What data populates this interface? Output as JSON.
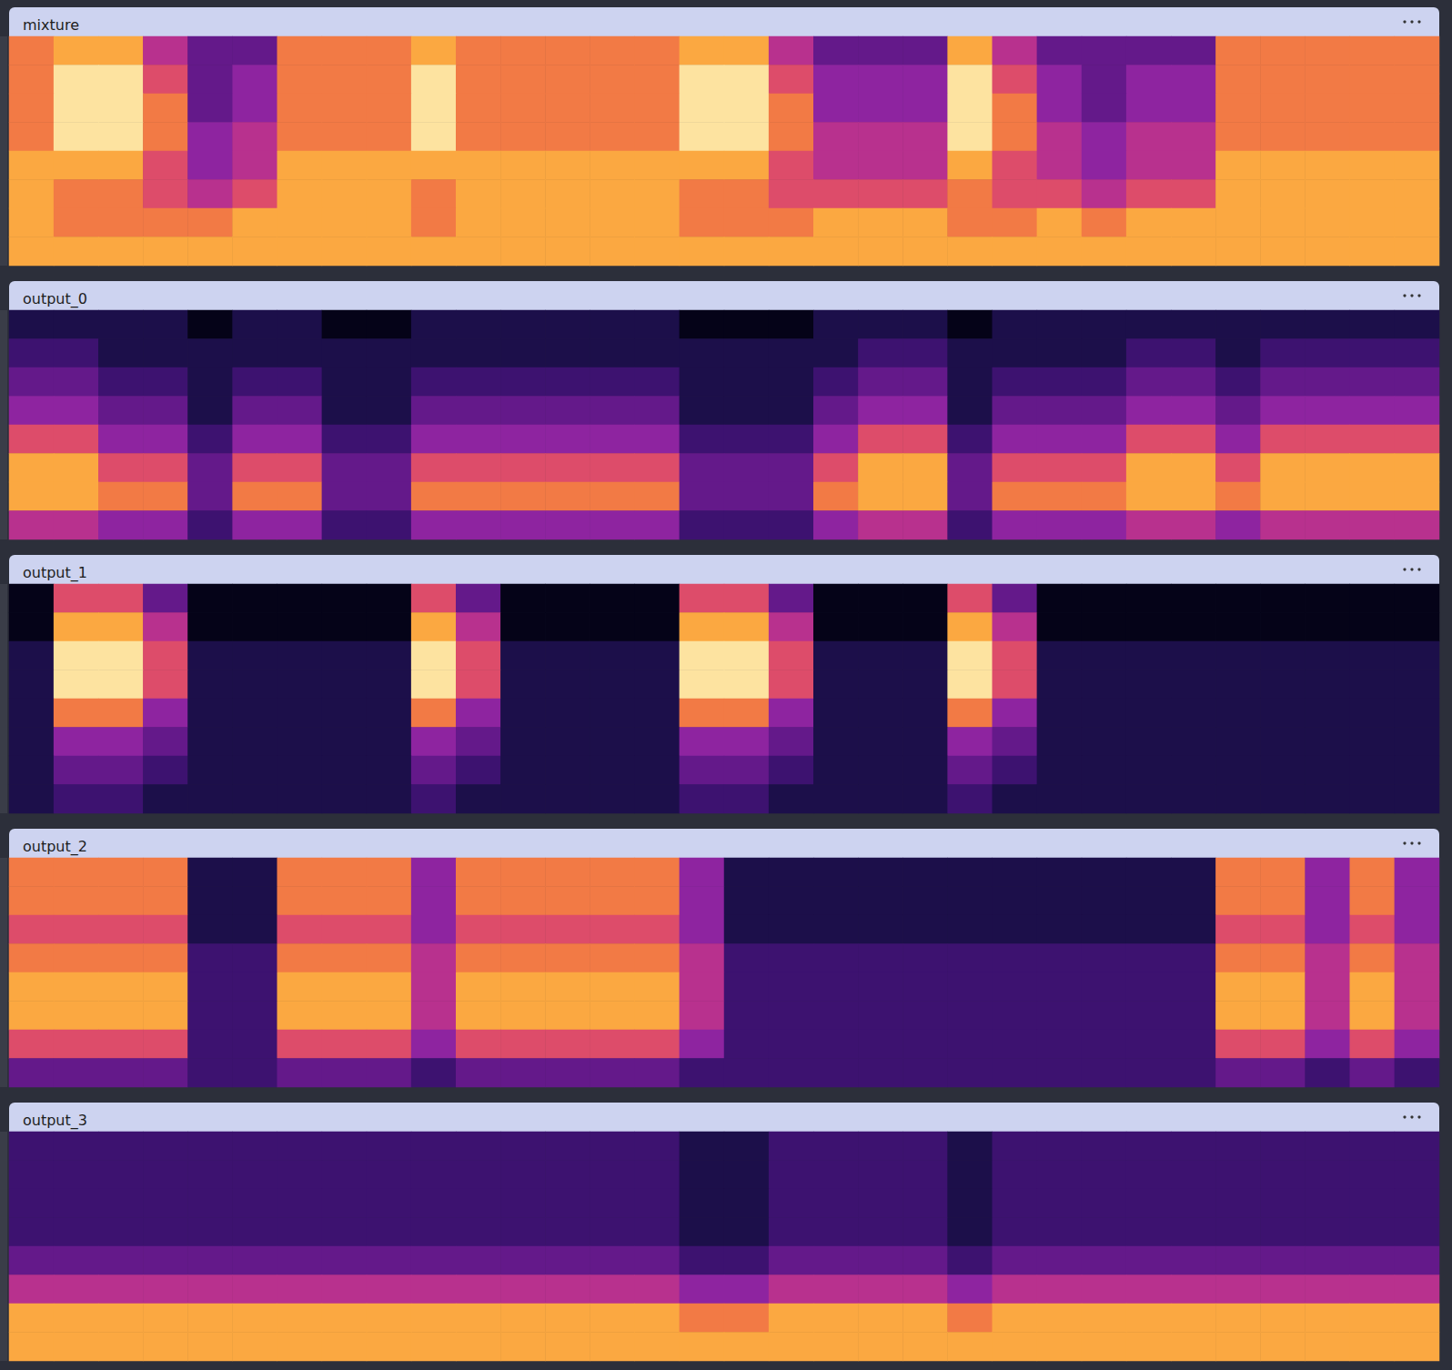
{
  "chart_data": [
    {
      "type": "heatmap",
      "title": "mixture",
      "tick_labels": false,
      "color_range": [
        0,
        9
      ],
      "cells": [
        [
          7,
          8,
          8,
          5,
          3,
          3,
          7,
          7,
          7,
          8,
          7,
          7,
          7,
          7,
          7,
          8,
          8,
          5,
          3,
          3,
          3,
          8,
          5,
          3,
          3,
          3,
          3,
          7,
          7,
          7,
          7,
          7
        ],
        [
          7,
          9,
          9,
          6,
          3,
          4,
          7,
          7,
          7,
          9,
          7,
          7,
          7,
          7,
          7,
          9,
          9,
          6,
          4,
          4,
          4,
          9,
          6,
          4,
          3,
          4,
          4,
          7,
          7,
          7,
          7,
          7
        ],
        [
          7,
          9,
          9,
          7,
          3,
          4,
          7,
          7,
          7,
          9,
          7,
          7,
          7,
          7,
          7,
          9,
          9,
          7,
          4,
          4,
          4,
          9,
          7,
          4,
          3,
          4,
          4,
          7,
          7,
          7,
          7,
          7
        ],
        [
          7,
          9,
          9,
          7,
          4,
          5,
          7,
          7,
          7,
          9,
          7,
          7,
          7,
          7,
          7,
          9,
          9,
          7,
          5,
          5,
          5,
          9,
          7,
          5,
          4,
          5,
          5,
          7,
          7,
          7,
          7,
          7
        ],
        [
          8,
          8,
          8,
          6,
          4,
          5,
          8,
          8,
          8,
          8,
          8,
          8,
          8,
          8,
          8,
          8,
          8,
          6,
          5,
          5,
          5,
          8,
          6,
          5,
          4,
          5,
          5,
          8,
          8,
          8,
          8,
          8
        ],
        [
          8,
          7,
          7,
          6,
          5,
          6,
          8,
          8,
          8,
          7,
          8,
          8,
          8,
          8,
          8,
          7,
          7,
          6,
          6,
          6,
          6,
          7,
          6,
          6,
          5,
          6,
          6,
          8,
          8,
          8,
          8,
          8
        ],
        [
          8,
          7,
          7,
          7,
          7,
          8,
          8,
          8,
          8,
          7,
          8,
          8,
          8,
          8,
          8,
          7,
          7,
          7,
          8,
          8,
          8,
          7,
          7,
          8,
          7,
          8,
          8,
          8,
          8,
          8,
          8,
          8
        ],
        [
          8,
          8,
          8,
          8,
          8,
          8,
          8,
          8,
          8,
          8,
          8,
          8,
          8,
          8,
          8,
          8,
          8,
          8,
          8,
          8,
          8,
          8,
          8,
          8,
          8,
          8,
          8,
          8,
          8,
          8,
          8,
          8
        ]
      ]
    },
    {
      "type": "heatmap",
      "title": "output_0",
      "tick_labels": false,
      "color_range": [
        0,
        9
      ],
      "cells": [
        [
          1,
          1,
          1,
          1,
          0,
          1,
          1,
          0,
          0,
          1,
          1,
          1,
          1,
          1,
          1,
          0,
          0,
          0,
          1,
          1,
          1,
          0,
          1,
          1,
          1,
          1,
          1,
          1,
          1,
          1,
          1,
          1
        ],
        [
          2,
          2,
          1,
          1,
          1,
          1,
          1,
          1,
          1,
          1,
          1,
          1,
          1,
          1,
          1,
          1,
          1,
          1,
          1,
          2,
          2,
          1,
          1,
          1,
          1,
          2,
          2,
          1,
          2,
          2,
          2,
          2
        ],
        [
          3,
          3,
          2,
          2,
          1,
          2,
          2,
          1,
          1,
          2,
          2,
          2,
          2,
          2,
          2,
          1,
          1,
          1,
          2,
          3,
          3,
          1,
          2,
          2,
          2,
          3,
          3,
          2,
          3,
          3,
          3,
          3
        ],
        [
          4,
          4,
          3,
          3,
          1,
          3,
          3,
          1,
          1,
          3,
          3,
          3,
          3,
          3,
          3,
          1,
          1,
          1,
          3,
          4,
          4,
          1,
          3,
          3,
          3,
          4,
          4,
          3,
          4,
          4,
          4,
          4
        ],
        [
          6,
          6,
          4,
          4,
          2,
          4,
          4,
          2,
          2,
          4,
          4,
          4,
          4,
          4,
          4,
          2,
          2,
          2,
          4,
          6,
          6,
          2,
          4,
          4,
          4,
          6,
          6,
          4,
          6,
          6,
          6,
          6
        ],
        [
          8,
          8,
          6,
          6,
          3,
          6,
          6,
          3,
          3,
          6,
          6,
          6,
          6,
          6,
          6,
          3,
          3,
          3,
          6,
          8,
          8,
          3,
          6,
          6,
          6,
          8,
          8,
          6,
          8,
          8,
          8,
          8
        ],
        [
          8,
          8,
          7,
          7,
          3,
          7,
          7,
          3,
          3,
          7,
          7,
          7,
          7,
          7,
          7,
          3,
          3,
          3,
          7,
          8,
          8,
          3,
          7,
          7,
          7,
          8,
          8,
          7,
          8,
          8,
          8,
          8
        ],
        [
          5,
          5,
          4,
          4,
          2,
          4,
          4,
          2,
          2,
          4,
          4,
          4,
          4,
          4,
          4,
          2,
          2,
          2,
          4,
          5,
          5,
          2,
          4,
          4,
          4,
          5,
          5,
          4,
          5,
          5,
          5,
          5
        ]
      ]
    },
    {
      "type": "heatmap",
      "title": "output_1",
      "tick_labels": false,
      "color_range": [
        0,
        9
      ],
      "cells": [
        [
          0,
          6,
          6,
          3,
          0,
          0,
          0,
          0,
          0,
          6,
          3,
          0,
          0,
          0,
          0,
          6,
          6,
          3,
          0,
          0,
          0,
          6,
          3,
          0,
          0,
          0,
          0,
          0,
          0,
          0,
          0,
          0
        ],
        [
          0,
          8,
          8,
          5,
          0,
          0,
          0,
          0,
          0,
          8,
          5,
          0,
          0,
          0,
          0,
          8,
          8,
          5,
          0,
          0,
          0,
          8,
          5,
          0,
          0,
          0,
          0,
          0,
          0,
          0,
          0,
          0
        ],
        [
          1,
          9,
          9,
          6,
          1,
          1,
          1,
          1,
          1,
          9,
          6,
          1,
          1,
          1,
          1,
          9,
          9,
          6,
          1,
          1,
          1,
          9,
          6,
          1,
          1,
          1,
          1,
          1,
          1,
          1,
          1,
          1
        ],
        [
          1,
          9,
          9,
          6,
          1,
          1,
          1,
          1,
          1,
          9,
          6,
          1,
          1,
          1,
          1,
          9,
          9,
          6,
          1,
          1,
          1,
          9,
          6,
          1,
          1,
          1,
          1,
          1,
          1,
          1,
          1,
          1
        ],
        [
          1,
          7,
          7,
          4,
          1,
          1,
          1,
          1,
          1,
          7,
          4,
          1,
          1,
          1,
          1,
          7,
          7,
          4,
          1,
          1,
          1,
          7,
          4,
          1,
          1,
          1,
          1,
          1,
          1,
          1,
          1,
          1
        ],
        [
          1,
          4,
          4,
          3,
          1,
          1,
          1,
          1,
          1,
          4,
          3,
          1,
          1,
          1,
          1,
          4,
          4,
          3,
          1,
          1,
          1,
          4,
          3,
          1,
          1,
          1,
          1,
          1,
          1,
          1,
          1,
          1
        ],
        [
          1,
          3,
          3,
          2,
          1,
          1,
          1,
          1,
          1,
          3,
          2,
          1,
          1,
          1,
          1,
          3,
          3,
          2,
          1,
          1,
          1,
          3,
          2,
          1,
          1,
          1,
          1,
          1,
          1,
          1,
          1,
          1
        ],
        [
          1,
          2,
          2,
          1,
          1,
          1,
          1,
          1,
          1,
          2,
          1,
          1,
          1,
          1,
          1,
          2,
          2,
          1,
          1,
          1,
          1,
          2,
          1,
          1,
          1,
          1,
          1,
          1,
          1,
          1,
          1,
          1
        ]
      ]
    },
    {
      "type": "heatmap",
      "title": "output_2",
      "tick_labels": false,
      "color_range": [
        0,
        9
      ],
      "cells": [
        [
          7,
          7,
          7,
          7,
          1,
          1,
          7,
          7,
          7,
          4,
          7,
          7,
          7,
          7,
          7,
          4,
          1,
          1,
          1,
          1,
          1,
          1,
          1,
          1,
          1,
          1,
          1,
          7,
          7,
          4,
          7,
          4
        ],
        [
          7,
          7,
          7,
          7,
          1,
          1,
          7,
          7,
          7,
          4,
          7,
          7,
          7,
          7,
          7,
          4,
          1,
          1,
          1,
          1,
          1,
          1,
          1,
          1,
          1,
          1,
          1,
          7,
          7,
          4,
          7,
          4
        ],
        [
          6,
          6,
          6,
          6,
          1,
          1,
          6,
          6,
          6,
          4,
          6,
          6,
          6,
          6,
          6,
          4,
          1,
          1,
          1,
          1,
          1,
          1,
          1,
          1,
          1,
          1,
          1,
          6,
          6,
          4,
          6,
          4
        ],
        [
          7,
          7,
          7,
          7,
          2,
          2,
          7,
          7,
          7,
          5,
          7,
          7,
          7,
          7,
          7,
          5,
          2,
          2,
          2,
          2,
          2,
          2,
          2,
          2,
          2,
          2,
          2,
          7,
          7,
          5,
          7,
          5
        ],
        [
          8,
          8,
          8,
          8,
          2,
          2,
          8,
          8,
          8,
          5,
          8,
          8,
          8,
          8,
          8,
          5,
          2,
          2,
          2,
          2,
          2,
          2,
          2,
          2,
          2,
          2,
          2,
          8,
          8,
          5,
          8,
          5
        ],
        [
          8,
          8,
          8,
          8,
          2,
          2,
          8,
          8,
          8,
          5,
          8,
          8,
          8,
          8,
          8,
          5,
          2,
          2,
          2,
          2,
          2,
          2,
          2,
          2,
          2,
          2,
          2,
          8,
          8,
          5,
          8,
          5
        ],
        [
          6,
          6,
          6,
          6,
          2,
          2,
          6,
          6,
          6,
          4,
          6,
          6,
          6,
          6,
          6,
          4,
          2,
          2,
          2,
          2,
          2,
          2,
          2,
          2,
          2,
          2,
          2,
          6,
          6,
          4,
          6,
          4
        ],
        [
          3,
          3,
          3,
          3,
          2,
          2,
          3,
          3,
          3,
          2,
          3,
          3,
          3,
          3,
          3,
          2,
          2,
          2,
          2,
          2,
          2,
          2,
          2,
          2,
          2,
          2,
          2,
          3,
          3,
          2,
          3,
          2
        ]
      ]
    },
    {
      "type": "heatmap",
      "title": "output_3",
      "tick_labels": false,
      "color_range": [
        0,
        9
      ],
      "cells": [
        [
          2,
          2,
          2,
          2,
          2,
          2,
          2,
          2,
          2,
          2,
          2,
          2,
          2,
          2,
          2,
          1,
          1,
          2,
          2,
          2,
          2,
          1,
          2,
          2,
          2,
          2,
          2,
          2,
          2,
          2,
          2,
          2
        ],
        [
          2,
          2,
          2,
          2,
          2,
          2,
          2,
          2,
          2,
          2,
          2,
          2,
          2,
          2,
          2,
          1,
          1,
          2,
          2,
          2,
          2,
          1,
          2,
          2,
          2,
          2,
          2,
          2,
          2,
          2,
          2,
          2
        ],
        [
          2,
          2,
          2,
          2,
          2,
          2,
          2,
          2,
          2,
          2,
          2,
          2,
          2,
          2,
          2,
          1,
          1,
          2,
          2,
          2,
          2,
          1,
          2,
          2,
          2,
          2,
          2,
          2,
          2,
          2,
          2,
          2
        ],
        [
          2,
          2,
          2,
          2,
          2,
          2,
          2,
          2,
          2,
          2,
          2,
          2,
          2,
          2,
          2,
          1,
          1,
          2,
          2,
          2,
          2,
          1,
          2,
          2,
          2,
          2,
          2,
          2,
          2,
          2,
          2,
          2
        ],
        [
          3,
          3,
          3,
          3,
          3,
          3,
          3,
          3,
          3,
          3,
          3,
          3,
          3,
          3,
          3,
          2,
          2,
          3,
          3,
          3,
          3,
          2,
          3,
          3,
          3,
          3,
          3,
          3,
          3,
          3,
          3,
          3
        ],
        [
          5,
          5,
          5,
          5,
          5,
          5,
          5,
          5,
          5,
          5,
          5,
          5,
          5,
          5,
          5,
          4,
          4,
          5,
          5,
          5,
          5,
          4,
          5,
          5,
          5,
          5,
          5,
          5,
          5,
          5,
          5,
          5
        ],
        [
          8,
          8,
          8,
          8,
          8,
          8,
          8,
          8,
          8,
          8,
          8,
          8,
          8,
          8,
          8,
          7,
          7,
          8,
          8,
          8,
          8,
          7,
          8,
          8,
          8,
          8,
          8,
          8,
          8,
          8,
          8,
          8
        ],
        [
          8,
          8,
          8,
          8,
          8,
          8,
          8,
          8,
          8,
          8,
          8,
          8,
          8,
          8,
          8,
          8,
          8,
          8,
          8,
          8,
          8,
          8,
          8,
          8,
          8,
          8,
          8,
          8,
          8,
          8,
          8,
          8
        ]
      ]
    }
  ]
}
